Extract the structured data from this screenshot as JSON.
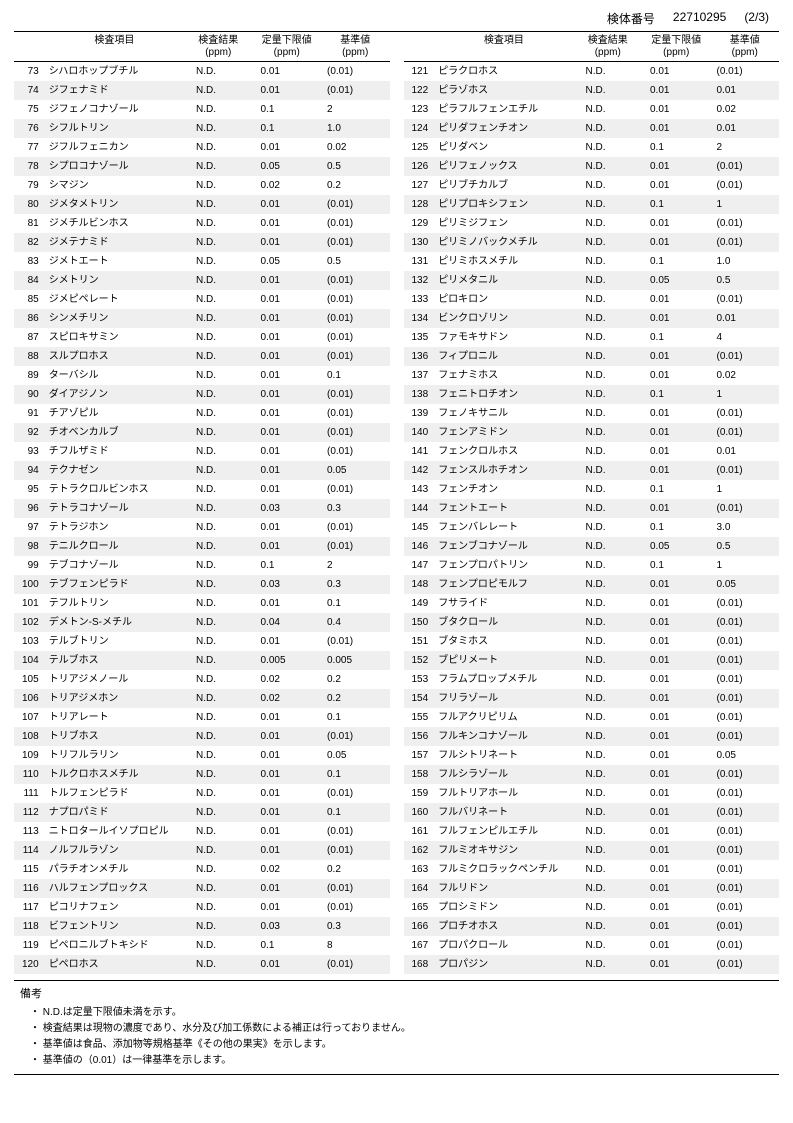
{
  "header": {
    "sample_id_label": "検体番号",
    "sample_id": "22710295",
    "page": "(2/3)"
  },
  "columns": {
    "item": "検査項目",
    "result": "検査結果",
    "lower": "定量下限値",
    "std": "基準値",
    "ppm": "(ppm)"
  },
  "remarks": {
    "title": "備考",
    "lines": [
      "N.D.は定量下限値未満を示す。",
      "検査結果は現物の濃度であり、水分及び加工係数による補正は行っておりません。",
      "基準値は食品、添加物等規格基準《その他の果実》を示します。",
      "基準値の（0.01）は一律基準を示します。"
    ]
  },
  "left": [
    {
      "n": 73,
      "name": "シハロホップブチル",
      "r": "N.D.",
      "l": "0.01",
      "s": "(0.01)"
    },
    {
      "n": 74,
      "name": "ジフェナミド",
      "r": "N.D.",
      "l": "0.01",
      "s": "(0.01)"
    },
    {
      "n": 75,
      "name": "ジフェノコナゾール",
      "r": "N.D.",
      "l": "0.1",
      "s": "2"
    },
    {
      "n": 76,
      "name": "シフルトリン",
      "r": "N.D.",
      "l": "0.1",
      "s": "1.0"
    },
    {
      "n": 77,
      "name": "ジフルフェニカン",
      "r": "N.D.",
      "l": "0.01",
      "s": "0.02"
    },
    {
      "n": 78,
      "name": "シプロコナゾール",
      "r": "N.D.",
      "l": "0.05",
      "s": "0.5"
    },
    {
      "n": 79,
      "name": "シマジン",
      "r": "N.D.",
      "l": "0.02",
      "s": "0.2"
    },
    {
      "n": 80,
      "name": "ジメタメトリン",
      "r": "N.D.",
      "l": "0.01",
      "s": "(0.01)"
    },
    {
      "n": 81,
      "name": "ジメチルビンホス",
      "r": "N.D.",
      "l": "0.01",
      "s": "(0.01)"
    },
    {
      "n": 82,
      "name": "ジメテナミド",
      "r": "N.D.",
      "l": "0.01",
      "s": "(0.01)"
    },
    {
      "n": 83,
      "name": "ジメトエート",
      "r": "N.D.",
      "l": "0.05",
      "s": "0.5"
    },
    {
      "n": 84,
      "name": "シメトリン",
      "r": "N.D.",
      "l": "0.01",
      "s": "(0.01)"
    },
    {
      "n": 85,
      "name": "ジメピペレート",
      "r": "N.D.",
      "l": "0.01",
      "s": "(0.01)"
    },
    {
      "n": 86,
      "name": "シンメチリン",
      "r": "N.D.",
      "l": "0.01",
      "s": "(0.01)"
    },
    {
      "n": 87,
      "name": "スピロキサミン",
      "r": "N.D.",
      "l": "0.01",
      "s": "(0.01)"
    },
    {
      "n": 88,
      "name": "スルプロホス",
      "r": "N.D.",
      "l": "0.01",
      "s": "(0.01)"
    },
    {
      "n": 89,
      "name": "ターバシル",
      "r": "N.D.",
      "l": "0.01",
      "s": "0.1"
    },
    {
      "n": 90,
      "name": "ダイアジノン",
      "r": "N.D.",
      "l": "0.01",
      "s": "(0.01)"
    },
    {
      "n": 91,
      "name": "チアゾピル",
      "r": "N.D.",
      "l": "0.01",
      "s": "(0.01)"
    },
    {
      "n": 92,
      "name": "チオベンカルブ",
      "r": "N.D.",
      "l": "0.01",
      "s": "(0.01)"
    },
    {
      "n": 93,
      "name": "チフルザミド",
      "r": "N.D.",
      "l": "0.01",
      "s": "(0.01)"
    },
    {
      "n": 94,
      "name": "テクナゼン",
      "r": "N.D.",
      "l": "0.01",
      "s": "0.05"
    },
    {
      "n": 95,
      "name": "テトラクロルビンホス",
      "r": "N.D.",
      "l": "0.01",
      "s": "(0.01)"
    },
    {
      "n": 96,
      "name": "テトラコナゾール",
      "r": "N.D.",
      "l": "0.03",
      "s": "0.3"
    },
    {
      "n": 97,
      "name": "テトラジホン",
      "r": "N.D.",
      "l": "0.01",
      "s": "(0.01)"
    },
    {
      "n": 98,
      "name": "テニルクロール",
      "r": "N.D.",
      "l": "0.01",
      "s": "(0.01)"
    },
    {
      "n": 99,
      "name": "テブコナゾール",
      "r": "N.D.",
      "l": "0.1",
      "s": "2"
    },
    {
      "n": 100,
      "name": "テブフェンピラド",
      "r": "N.D.",
      "l": "0.03",
      "s": "0.3"
    },
    {
      "n": 101,
      "name": "テフルトリン",
      "r": "N.D.",
      "l": "0.01",
      "s": "0.1"
    },
    {
      "n": 102,
      "name": "デメトン-S-メチル",
      "r": "N.D.",
      "l": "0.04",
      "s": "0.4"
    },
    {
      "n": 103,
      "name": "テルブトリン",
      "r": "N.D.",
      "l": "0.01",
      "s": "(0.01)"
    },
    {
      "n": 104,
      "name": "テルブホス",
      "r": "N.D.",
      "l": "0.005",
      "s": "0.005"
    },
    {
      "n": 105,
      "name": "トリアジメノール",
      "r": "N.D.",
      "l": "0.02",
      "s": "0.2"
    },
    {
      "n": 106,
      "name": "トリアジメホン",
      "r": "N.D.",
      "l": "0.02",
      "s": "0.2"
    },
    {
      "n": 107,
      "name": "トリアレート",
      "r": "N.D.",
      "l": "0.01",
      "s": "0.1"
    },
    {
      "n": 108,
      "name": "トリブホス",
      "r": "N.D.",
      "l": "0.01",
      "s": "(0.01)"
    },
    {
      "n": 109,
      "name": "トリフルラリン",
      "r": "N.D.",
      "l": "0.01",
      "s": "0.05"
    },
    {
      "n": 110,
      "name": "トルクロホスメチル",
      "r": "N.D.",
      "l": "0.01",
      "s": "0.1"
    },
    {
      "n": 111,
      "name": "トルフェンピラド",
      "r": "N.D.",
      "l": "0.01",
      "s": "(0.01)"
    },
    {
      "n": 112,
      "name": "ナプロパミド",
      "r": "N.D.",
      "l": "0.01",
      "s": "0.1"
    },
    {
      "n": 113,
      "name": "ニトロタールイソプロピル",
      "r": "N.D.",
      "l": "0.01",
      "s": "(0.01)"
    },
    {
      "n": 114,
      "name": "ノルフルラゾン",
      "r": "N.D.",
      "l": "0.01",
      "s": "(0.01)"
    },
    {
      "n": 115,
      "name": "パラチオンメチル",
      "r": "N.D.",
      "l": "0.02",
      "s": "0.2"
    },
    {
      "n": 116,
      "name": "ハルフェンプロックス",
      "r": "N.D.",
      "l": "0.01",
      "s": "(0.01)"
    },
    {
      "n": 117,
      "name": "ピコリナフェン",
      "r": "N.D.",
      "l": "0.01",
      "s": "(0.01)"
    },
    {
      "n": 118,
      "name": "ビフェントリン",
      "r": "N.D.",
      "l": "0.03",
      "s": "0.3"
    },
    {
      "n": 119,
      "name": "ピペロニルブトキシド",
      "r": "N.D.",
      "l": "0.1",
      "s": "8"
    },
    {
      "n": 120,
      "name": "ピペロホス",
      "r": "N.D.",
      "l": "0.01",
      "s": "(0.01)"
    }
  ],
  "right": [
    {
      "n": 121,
      "name": "ピラクロホス",
      "r": "N.D.",
      "l": "0.01",
      "s": "(0.01)"
    },
    {
      "n": 122,
      "name": "ピラゾホス",
      "r": "N.D.",
      "l": "0.01",
      "s": "0.01"
    },
    {
      "n": 123,
      "name": "ピラフルフェンエチル",
      "r": "N.D.",
      "l": "0.01",
      "s": "0.02"
    },
    {
      "n": 124,
      "name": "ピリダフェンチオン",
      "r": "N.D.",
      "l": "0.01",
      "s": "0.01"
    },
    {
      "n": 125,
      "name": "ピリダベン",
      "r": "N.D.",
      "l": "0.1",
      "s": "2"
    },
    {
      "n": 126,
      "name": "ピリフェノックス",
      "r": "N.D.",
      "l": "0.01",
      "s": "(0.01)"
    },
    {
      "n": 127,
      "name": "ピリブチカルブ",
      "r": "N.D.",
      "l": "0.01",
      "s": "(0.01)"
    },
    {
      "n": 128,
      "name": "ピリプロキシフェン",
      "r": "N.D.",
      "l": "0.1",
      "s": "1"
    },
    {
      "n": 129,
      "name": "ピリミジフェン",
      "r": "N.D.",
      "l": "0.01",
      "s": "(0.01)"
    },
    {
      "n": 130,
      "name": "ピリミノバックメチル",
      "r": "N.D.",
      "l": "0.01",
      "s": "(0.01)"
    },
    {
      "n": 131,
      "name": "ピリミホスメチル",
      "r": "N.D.",
      "l": "0.1",
      "s": "1.0"
    },
    {
      "n": 132,
      "name": "ピリメタニル",
      "r": "N.D.",
      "l": "0.05",
      "s": "0.5"
    },
    {
      "n": 133,
      "name": "ピロキロン",
      "r": "N.D.",
      "l": "0.01",
      "s": "(0.01)"
    },
    {
      "n": 134,
      "name": "ビンクロゾリン",
      "r": "N.D.",
      "l": "0.01",
      "s": "0.01"
    },
    {
      "n": 135,
      "name": "ファモキサドン",
      "r": "N.D.",
      "l": "0.1",
      "s": "4"
    },
    {
      "n": 136,
      "name": "フィプロニル",
      "r": "N.D.",
      "l": "0.01",
      "s": "(0.01)"
    },
    {
      "n": 137,
      "name": "フェナミホス",
      "r": "N.D.",
      "l": "0.01",
      "s": "0.02"
    },
    {
      "n": 138,
      "name": "フェニトロチオン",
      "r": "N.D.",
      "l": "0.1",
      "s": "1"
    },
    {
      "n": 139,
      "name": "フェノキサニル",
      "r": "N.D.",
      "l": "0.01",
      "s": "(0.01)"
    },
    {
      "n": 140,
      "name": "フェンアミドン",
      "r": "N.D.",
      "l": "0.01",
      "s": "(0.01)"
    },
    {
      "n": 141,
      "name": "フェンクロルホス",
      "r": "N.D.",
      "l": "0.01",
      "s": "0.01"
    },
    {
      "n": 142,
      "name": "フェンスルホチオン",
      "r": "N.D.",
      "l": "0.01",
      "s": "(0.01)"
    },
    {
      "n": 143,
      "name": "フェンチオン",
      "r": "N.D.",
      "l": "0.1",
      "s": "1"
    },
    {
      "n": 144,
      "name": "フェントエート",
      "r": "N.D.",
      "l": "0.01",
      "s": "(0.01)"
    },
    {
      "n": 145,
      "name": "フェンバレレート",
      "r": "N.D.",
      "l": "0.1",
      "s": "3.0"
    },
    {
      "n": 146,
      "name": "フェンブコナゾール",
      "r": "N.D.",
      "l": "0.05",
      "s": "0.5"
    },
    {
      "n": 147,
      "name": "フェンプロパトリン",
      "r": "N.D.",
      "l": "0.1",
      "s": "1"
    },
    {
      "n": 148,
      "name": "フェンプロピモルフ",
      "r": "N.D.",
      "l": "0.01",
      "s": "0.05"
    },
    {
      "n": 149,
      "name": "フサライド",
      "r": "N.D.",
      "l": "0.01",
      "s": "(0.01)"
    },
    {
      "n": 150,
      "name": "ブタクロール",
      "r": "N.D.",
      "l": "0.01",
      "s": "(0.01)"
    },
    {
      "n": 151,
      "name": "ブタミホス",
      "r": "N.D.",
      "l": "0.01",
      "s": "(0.01)"
    },
    {
      "n": 152,
      "name": "ブピリメート",
      "r": "N.D.",
      "l": "0.01",
      "s": "(0.01)"
    },
    {
      "n": 153,
      "name": "フラムプロップメチル",
      "r": "N.D.",
      "l": "0.01",
      "s": "(0.01)"
    },
    {
      "n": 154,
      "name": "フリラゾール",
      "r": "N.D.",
      "l": "0.01",
      "s": "(0.01)"
    },
    {
      "n": 155,
      "name": "フルアクリピリム",
      "r": "N.D.",
      "l": "0.01",
      "s": "(0.01)"
    },
    {
      "n": 156,
      "name": "フルキンコナゾール",
      "r": "N.D.",
      "l": "0.01",
      "s": "(0.01)"
    },
    {
      "n": 157,
      "name": "フルシトリネート",
      "r": "N.D.",
      "l": "0.01",
      "s": "0.05"
    },
    {
      "n": 158,
      "name": "フルシラゾール",
      "r": "N.D.",
      "l": "0.01",
      "s": "(0.01)"
    },
    {
      "n": 159,
      "name": "フルトリアホール",
      "r": "N.D.",
      "l": "0.01",
      "s": "(0.01)"
    },
    {
      "n": 160,
      "name": "フルバリネート",
      "r": "N.D.",
      "l": "0.01",
      "s": "(0.01)"
    },
    {
      "n": 161,
      "name": "フルフェンピルエチル",
      "r": "N.D.",
      "l": "0.01",
      "s": "(0.01)"
    },
    {
      "n": 162,
      "name": "フルミオキサジン",
      "r": "N.D.",
      "l": "0.01",
      "s": "(0.01)"
    },
    {
      "n": 163,
      "name": "フルミクロラックペンチル",
      "r": "N.D.",
      "l": "0.01",
      "s": "(0.01)"
    },
    {
      "n": 164,
      "name": "フルリドン",
      "r": "N.D.",
      "l": "0.01",
      "s": "(0.01)"
    },
    {
      "n": 165,
      "name": "プロシミドン",
      "r": "N.D.",
      "l": "0.01",
      "s": "(0.01)"
    },
    {
      "n": 166,
      "name": "プロチオホス",
      "r": "N.D.",
      "l": "0.01",
      "s": "(0.01)"
    },
    {
      "n": 167,
      "name": "プロパクロール",
      "r": "N.D.",
      "l": "0.01",
      "s": "(0.01)"
    },
    {
      "n": 168,
      "name": "プロパジン",
      "r": "N.D.",
      "l": "0.01",
      "s": "(0.01)"
    }
  ]
}
